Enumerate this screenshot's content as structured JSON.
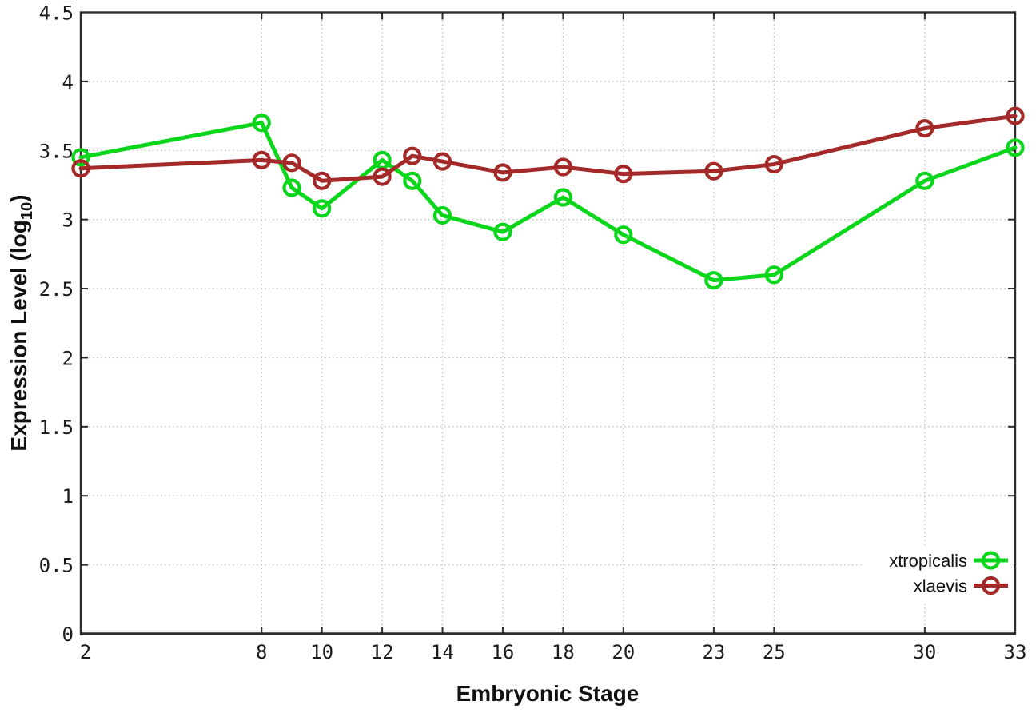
{
  "chart_data": {
    "type": "line",
    "title": "",
    "xlabel": "Embryonic Stage",
    "ylabel_parts": {
      "main": "Expression Level (log",
      "sub": "10",
      "close": ")"
    },
    "x": [
      2,
      8,
      9,
      10,
      12,
      13,
      14,
      16,
      18,
      20,
      23,
      25,
      30,
      33
    ],
    "series": [
      {
        "name": "xtropicalis",
        "color": "#0bd61c",
        "values": [
          3.45,
          3.7,
          3.23,
          3.08,
          3.43,
          3.28,
          3.03,
          2.91,
          3.16,
          2.89,
          2.56,
          2.6,
          3.28,
          3.52
        ]
      },
      {
        "name": "xlaevis",
        "color": "#a42a2a",
        "values": [
          3.37,
          3.43,
          3.41,
          3.28,
          3.31,
          3.46,
          3.42,
          3.34,
          3.38,
          3.33,
          3.35,
          3.4,
          3.66,
          3.75
        ]
      }
    ],
    "xlim": [
      2,
      33
    ],
    "ylim": [
      0,
      4.5
    ],
    "xticks": {
      "values": [
        2,
        8,
        10,
        12,
        14,
        16,
        18,
        20,
        23,
        25,
        30,
        33
      ],
      "labels": [
        "2",
        "8",
        "10",
        "12",
        "14",
        "16",
        "18",
        "20",
        "23",
        "25",
        "30",
        "33"
      ]
    },
    "yticks": {
      "values": [
        0,
        0.5,
        1,
        1.5,
        2,
        2.5,
        3,
        3.5,
        4,
        4.5
      ],
      "labels": [
        "0",
        "0.5",
        "1",
        "1.5",
        "2",
        "2.5",
        "3",
        "3.5",
        "4",
        "4.5"
      ]
    },
    "grid": true,
    "legend_position": "bottom-right",
    "colors": {
      "background": "#ffffff",
      "border": "#2d2d2d",
      "grid": "#bdbdbd",
      "tick_text": "#1c1c1c"
    }
  }
}
